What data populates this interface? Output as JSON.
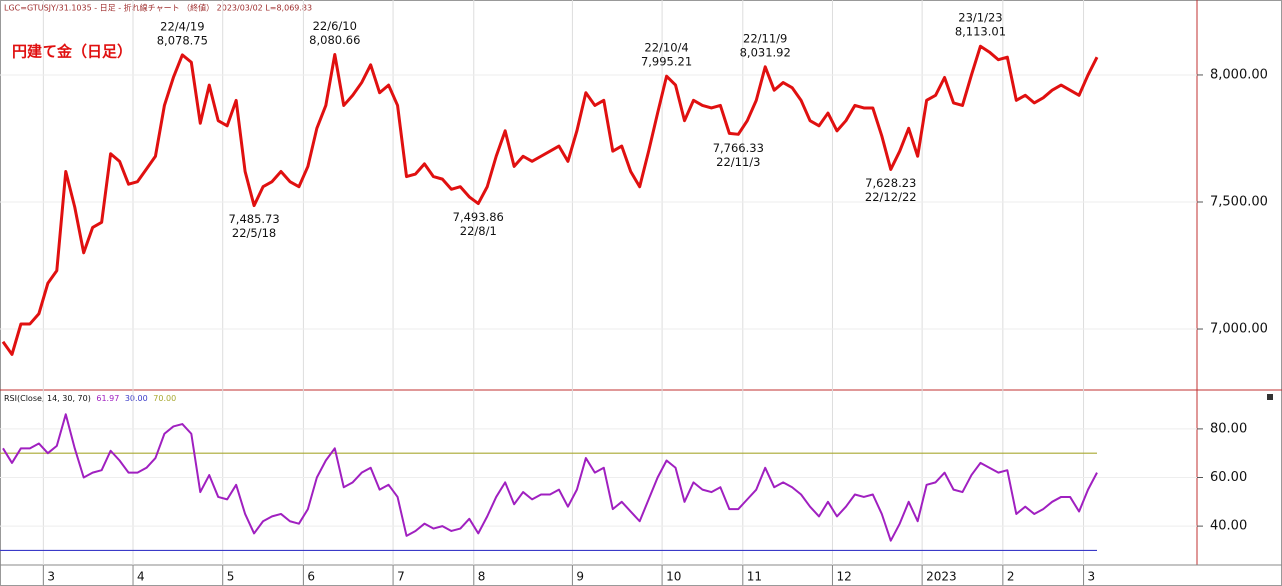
{
  "chart_data": [
    {
      "type": "line",
      "header": "LGC=GTUSJY/31.1035 - 日足 - 折れ線チャート （終値） 2023/03/02 L=8,069.83",
      "title": "円建て金（日足）",
      "categories": [
        null,
        null,
        null,
        null,
        null,
        "3",
        null,
        null,
        null,
        null,
        null,
        null,
        null,
        null,
        null,
        "4",
        null,
        null,
        null,
        null,
        null,
        null,
        null,
        null,
        null,
        "5",
        null,
        null,
        null,
        null,
        null,
        null,
        null,
        null,
        "6",
        null,
        null,
        null,
        null,
        null,
        null,
        null,
        null,
        null,
        "7",
        null,
        null,
        null,
        null,
        null,
        null,
        null,
        null,
        "8",
        null,
        null,
        null,
        null,
        null,
        null,
        null,
        null,
        null,
        null,
        "9",
        null,
        null,
        null,
        null,
        null,
        null,
        null,
        null,
        null,
        "10",
        null,
        null,
        null,
        null,
        null,
        null,
        null,
        null,
        "11",
        null,
        null,
        null,
        null,
        null,
        null,
        null,
        null,
        null,
        "12",
        null,
        null,
        null,
        null,
        null,
        null,
        null,
        null,
        null,
        "2023",
        null,
        null,
        null,
        null,
        null,
        null,
        null,
        null,
        "2",
        null,
        null,
        null,
        null,
        null,
        null,
        null,
        null,
        "3",
        null
      ],
      "series": [
        {
          "color": "#e01010",
          "values": [
            6950,
            6900,
            7020,
            7020,
            7060,
            7180,
            7230,
            7620,
            7480,
            7300,
            7400,
            7420,
            7690,
            7660,
            7570,
            7580,
            7630,
            7680,
            7880,
            7990,
            8078.75,
            8050,
            7810,
            7960,
            7820,
            7800,
            7900,
            7620,
            7485.73,
            7560,
            7580,
            7620,
            7580,
            7560,
            7640,
            7790,
            7880,
            8080.66,
            7880,
            7920,
            7970,
            8040,
            7930,
            7960,
            7880,
            7600,
            7610,
            7650,
            7600,
            7590,
            7550,
            7560,
            7520,
            7493.86,
            7560,
            7680,
            7780,
            7640,
            7680,
            7660,
            7680,
            7700,
            7720,
            7660,
            7780,
            7930,
            7880,
            7900,
            7700,
            7720,
            7620,
            7560,
            7700,
            7850,
            7995.21,
            7960,
            7820,
            7900,
            7880,
            7870,
            7880,
            7770,
            7766.33,
            7820,
            7900,
            8031.92,
            7940,
            7970,
            7950,
            7900,
            7820,
            7800,
            7850,
            7780,
            7820,
            7880,
            7870,
            7870,
            7760,
            7628.23,
            7700,
            7790,
            7680,
            7900,
            7920,
            7990,
            7890,
            7880,
            8000,
            8113.01,
            8090,
            8060,
            8070,
            7900,
            7920,
            7890,
            7910,
            7940,
            7960,
            7940,
            7920,
            8000,
            8069.83
          ]
        }
      ],
      "ylim": [
        6760,
        8295
      ],
      "yticks": [
        {
          "value": 7000,
          "label": "7,000.00"
        },
        {
          "value": 7500,
          "label": "7,500.00"
        },
        {
          "value": 8000,
          "label": "8,000.00"
        }
      ],
      "grid": true,
      "annotations": [
        {
          "date": "22/4/19",
          "value": 8078.75,
          "label": "8,078.75",
          "placement": "above"
        },
        {
          "date": "22/5/18",
          "value": 7485.73,
          "label": "7,485.73",
          "placement": "below"
        },
        {
          "date": "22/6/10",
          "value": 8080.66,
          "label": "8,080.66",
          "placement": "above"
        },
        {
          "date": "22/8/1",
          "value": 7493.86,
          "label": "7,493.86",
          "placement": "below"
        },
        {
          "date": "22/10/4",
          "value": 7995.21,
          "label": "7,995.21",
          "placement": "above"
        },
        {
          "date": "22/11/3",
          "value": 7766.33,
          "label": "7,766.33",
          "placement": "below"
        },
        {
          "date": "22/11/9",
          "value": 8031.92,
          "label": "8,031.92",
          "placement": "above"
        },
        {
          "date": "22/12/22",
          "value": 7628.23,
          "label": "7,628.23",
          "placement": "below"
        },
        {
          "date": "23/1/23",
          "value": 8113.01,
          "label": "8,113.01",
          "placement": "above"
        }
      ]
    },
    {
      "type": "line",
      "header": "RSI(Close, 14, 30, 70)",
      "last_value": {
        "value": 61.97,
        "label": "61.97",
        "color": "#a020c0"
      },
      "series": [
        {
          "color": "#a020c0",
          "values": [
            72,
            66,
            72,
            72,
            74,
            70,
            73,
            86,
            72,
            60,
            62,
            63,
            71,
            67,
            62,
            62,
            64,
            68,
            78,
            81,
            82,
            78,
            54,
            61,
            52,
            51,
            57,
            45,
            37,
            42,
            44,
            45,
            42,
            41,
            47,
            60,
            67,
            72,
            56,
            58,
            62,
            64,
            55,
            57,
            52,
            36,
            38,
            41,
            39,
            40,
            38,
            39,
            43,
            37,
            44,
            52,
            58,
            49,
            54,
            51,
            53,
            53,
            55,
            48,
            55,
            68,
            62,
            64,
            47,
            50,
            46,
            42,
            51,
            60,
            67,
            64,
            50,
            58,
            55,
            54,
            56,
            47,
            47,
            51,
            55,
            64,
            56,
            58,
            56,
            53,
            48,
            44,
            50,
            44,
            48,
            53,
            52,
            53,
            45,
            34,
            41,
            50,
            42,
            57,
            58,
            62,
            55,
            54,
            61,
            66,
            64,
            62,
            63,
            45,
            48,
            45,
            47,
            50,
            52,
            52,
            46,
            55,
            62
          ]
        }
      ],
      "reference_lines": [
        {
          "value": 30,
          "label": "30.00",
          "color": "#3a3ac8"
        },
        {
          "value": 70,
          "label": "70.00",
          "color": "#a8a830"
        }
      ],
      "ylim": [
        24,
        96
      ],
      "yticks": [
        {
          "value": 40,
          "label": "40.00"
        },
        {
          "value": 60,
          "label": "60.00"
        },
        {
          "value": 80,
          "label": "80.00"
        }
      ],
      "grid": true
    }
  ]
}
